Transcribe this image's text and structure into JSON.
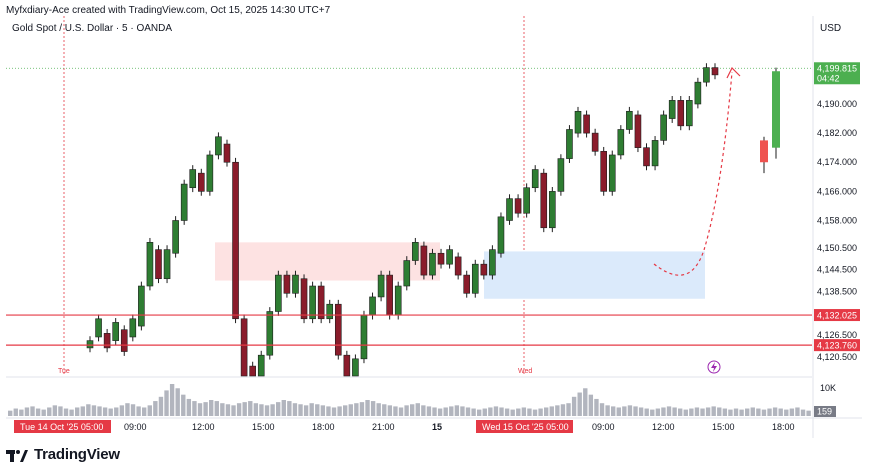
{
  "header": {
    "created_by": "Myfxdiary-Ace created with TradingView.com, Oct 15, 2025 14:30 UTC+7",
    "symbol": "Gold Spot / U.S. Dollar · 5 · OANDA",
    "currency": "USD"
  },
  "brand": {
    "name": "TradingView",
    "icon": "tradingview-logo-icon"
  },
  "colors": {
    "bull": "#26a69a",
    "bear": "#ef5350",
    "candle_body": "#1e1e1e",
    "bull_candle": "#2e7d32",
    "level_line": "#e53945",
    "supply_zone": "#fde2e2",
    "demand_zone": "#dbeafb",
    "price_badge": "#4caf50",
    "volume": "#b2b5be",
    "projection": "#e53945",
    "tick": "#131722",
    "day_label": "#e53945"
  },
  "chart_data": {
    "type": "candlestick",
    "ylim": [
      4118,
      4203
    ],
    "y_ticks": [
      4190.0,
      4182.0,
      4174.0,
      4166.0,
      4158.0,
      4150.5,
      4144.5,
      4138.5,
      4126.5,
      4120.5
    ],
    "y_tick_labels": [
      "4,190.000",
      "4,182.000",
      "4,174.000",
      "4,166.000",
      "4,158.000",
      "4,150.500",
      "4,144.500",
      "4,138.500",
      "4,126.500",
      "4,120.500"
    ],
    "x_tick_labels": [
      "09:00",
      "12:00",
      "15:00",
      "18:00",
      "21:00",
      "15",
      "09:00",
      "12:00",
      "15:00",
      "18:00"
    ],
    "x_day_markers": [
      {
        "label": "Tue",
        "badge": "Tue 14 Oct '25  05:00"
      },
      {
        "label": "Wed",
        "badge": "Wed 15 Oct '25  05:00"
      }
    ],
    "last_price": {
      "value": "4,199.815",
      "countdown": "04:42",
      "price": 4199.815
    },
    "levels": [
      {
        "label": "4,132.025",
        "price": 4132.025
      },
      {
        "label": "4,123.760",
        "price": 4123.76
      }
    ],
    "zones": [
      {
        "name": "supply",
        "price_top": 4152.0,
        "price_bottom": 4141.5
      },
      {
        "name": "demand",
        "price_top": 4149.5,
        "price_bottom": 4136.5
      }
    ],
    "volume_axis_label": "10K",
    "volume_badge": "159",
    "path_points": [
      [
        4123,
        4125
      ],
      [
        4126,
        4131
      ],
      [
        4127,
        4123
      ],
      [
        4125,
        4130
      ],
      [
        4128,
        4122
      ],
      [
        4126,
        4131
      ],
      [
        4129,
        4140
      ],
      [
        4140,
        4152
      ],
      [
        4150,
        4142
      ],
      [
        4142,
        4150
      ],
      [
        4149,
        4158
      ],
      [
        4158,
        4168
      ],
      [
        4167,
        4172
      ],
      [
        4171,
        4166
      ],
      [
        4166,
        4176
      ],
      [
        4176,
        4181
      ],
      [
        4179,
        4174
      ],
      [
        4174,
        4131
      ],
      [
        4131,
        4115
      ],
      [
        4118,
        4113
      ],
      [
        4114,
        4121
      ],
      [
        4121,
        4133
      ],
      [
        4133,
        4143
      ],
      [
        4143,
        4138
      ],
      [
        4138,
        4143
      ],
      [
        4142,
        4131
      ],
      [
        4131,
        4140
      ],
      [
        4140,
        4131
      ],
      [
        4131,
        4135
      ],
      [
        4135,
        4121
      ],
      [
        4121,
        4113
      ],
      [
        4115,
        4120
      ],
      [
        4120,
        4132
      ],
      [
        4132,
        4137
      ],
      [
        4137,
        4143
      ],
      [
        4143,
        4132
      ],
      [
        4132,
        4140
      ],
      [
        4140,
        4147
      ],
      [
        4147,
        4152
      ],
      [
        4151,
        4143
      ],
      [
        4143,
        4149
      ],
      [
        4149,
        4146
      ],
      [
        4146,
        4150
      ],
      [
        4148,
        4143
      ],
      [
        4143,
        4138
      ],
      [
        4138,
        4146
      ],
      [
        4146,
        4143
      ],
      [
        4143,
        4150
      ],
      [
        4149,
        4159
      ],
      [
        4158,
        4164
      ],
      [
        4164,
        4160
      ],
      [
        4160,
        4167
      ],
      [
        4167,
        4172
      ],
      [
        4171,
        4156
      ],
      [
        4156,
        4166
      ],
      [
        4166,
        4175
      ],
      [
        4175,
        4183
      ],
      [
        4182,
        4188
      ],
      [
        4187,
        4182
      ],
      [
        4182,
        4177
      ],
      [
        4177,
        4166
      ],
      [
        4166,
        4176
      ],
      [
        4176,
        4183
      ],
      [
        4183,
        4188
      ],
      [
        4187,
        4178
      ],
      [
        4178,
        4173
      ],
      [
        4173,
        4180
      ],
      [
        4180,
        4187
      ],
      [
        4186,
        4191
      ],
      [
        4191,
        4184
      ],
      [
        4184,
        4191
      ],
      [
        4190,
        4196
      ],
      [
        4196,
        4200
      ],
      [
        4200,
        4198
      ]
    ],
    "volume": [
      5,
      7,
      6,
      8,
      9,
      7,
      6,
      8,
      10,
      9,
      7,
      6,
      8,
      9,
      11,
      10,
      9,
      8,
      7,
      8,
      10,
      12,
      11,
      9,
      8,
      10,
      14,
      18,
      24,
      30,
      26,
      20,
      16,
      14,
      12,
      13,
      15,
      14,
      12,
      11,
      10,
      12,
      13,
      14,
      12,
      11,
      10,
      11,
      13,
      15,
      14,
      12,
      11,
      10,
      12,
      11,
      10,
      9,
      8,
      9,
      10,
      11,
      12,
      13,
      15,
      14,
      12,
      11,
      10,
      9,
      8,
      10,
      11,
      12,
      10,
      9,
      8,
      7,
      8,
      9,
      10,
      9,
      8,
      7,
      6,
      7,
      8,
      9,
      8,
      7,
      6,
      7,
      8,
      7,
      6,
      7,
      8,
      9,
      10,
      11,
      12,
      18,
      22,
      26,
      20,
      16,
      12,
      10,
      9,
      8,
      9,
      10,
      9,
      8,
      7,
      6,
      7,
      8,
      9,
      8,
      7,
      6,
      7,
      8,
      7,
      8,
      9,
      8,
      7,
      6,
      7,
      6,
      7,
      8,
      7,
      6,
      7,
      8,
      7,
      6,
      7,
      8,
      6,
      5
    ]
  }
}
